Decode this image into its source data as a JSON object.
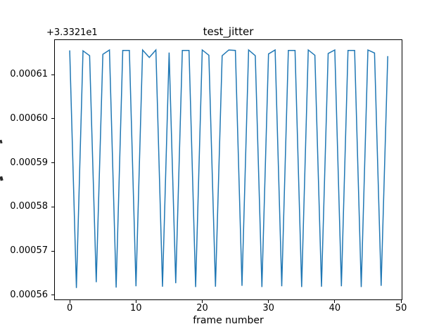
{
  "figure": {
    "background": "#ffffff",
    "text_color": "#000000"
  },
  "chart_data": {
    "type": "line",
    "title": "test_jitter",
    "xlabel": "frame number",
    "ylabel": "",
    "offset_text": "+3.3321e1",
    "line_color": "#1f77b4",
    "axis_color": "#000000",
    "grid": false,
    "legend": null,
    "xlim": [
      -2.35,
      50.1
    ],
    "ylim": [
      33.321559,
      33.321618
    ],
    "xticks": [
      0,
      10,
      20,
      30,
      40,
      50
    ],
    "xtick_labels": [
      "0",
      "10",
      "20",
      "30",
      "40",
      "50"
    ],
    "yticks": [
      33.32156,
      33.32157,
      33.32158,
      33.32159,
      33.3216,
      33.32161
    ],
    "ytick_labels": [
      "0.00056",
      "0.00057",
      "0.00058",
      "0.00059",
      "0.00060",
      "0.00061"
    ],
    "x": [
      0,
      1,
      2,
      3,
      4,
      5,
      6,
      7,
      8,
      9,
      10,
      11,
      12,
      13,
      14,
      15,
      16,
      17,
      18,
      19,
      20,
      21,
      22,
      23,
      24,
      25,
      26,
      27,
      28,
      29,
      30,
      31,
      32,
      33,
      34,
      35,
      36,
      37,
      38,
      39,
      40,
      41,
      42,
      43,
      44,
      45,
      46,
      47,
      48
    ],
    "values": [
      33.3216155,
      33.3215616,
      33.3216154,
      33.3216143,
      33.3215629,
      33.3216146,
      33.3216156,
      33.3215617,
      33.3216155,
      33.3216155,
      33.321562,
      33.3216156,
      33.3216139,
      33.3216156,
      33.3215619,
      33.321615,
      33.3215627,
      33.3216155,
      33.3216155,
      33.3215618,
      33.3216156,
      33.3216144,
      33.3215619,
      33.3216143,
      33.3216156,
      33.3216155,
      33.3215621,
      33.3216156,
      33.3216143,
      33.3215618,
      33.3216147,
      33.3216156,
      33.321562,
      33.3216155,
      33.3216155,
      33.3215618,
      33.3216156,
      33.3216144,
      33.3215619,
      33.3216148,
      33.3216156,
      33.321562,
      33.3216155,
      33.3216155,
      33.3215618,
      33.3216156,
      33.3216149,
      33.3215621,
      33.3216142
    ]
  }
}
